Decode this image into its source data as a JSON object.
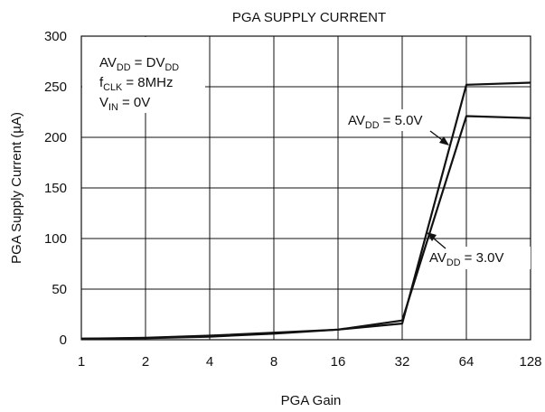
{
  "chart_data": {
    "type": "line",
    "title": "PGA SUPPLY CURRENT",
    "xlabel": "PGA Gain",
    "ylabel": "PGA Supply Current (µA)",
    "x_scale": "log2",
    "xlim": [
      1,
      128
    ],
    "ylim": [
      0,
      300
    ],
    "x_ticks": [
      "1",
      "2",
      "4",
      "8",
      "16",
      "32",
      "64",
      "128"
    ],
    "y_ticks": [
      "0",
      "50",
      "100",
      "150",
      "200",
      "250",
      "300"
    ],
    "grid": true,
    "conditions": [
      {
        "main": "AV",
        "sub": "DD",
        "rest": " = DV",
        "sub2": "DD"
      },
      {
        "main": "f",
        "sub": "CLK",
        "rest": " = 8MHz",
        "sub2": ""
      },
      {
        "main": "V",
        "sub": "IN",
        "rest": " = 0V",
        "sub2": ""
      }
    ],
    "series": [
      {
        "label_main": "AV",
        "label_sub": "DD",
        "label_rest": " = 5.0V",
        "x": [
          1,
          2,
          4,
          8,
          16,
          32,
          64,
          128
        ],
        "y": [
          1,
          2,
          4,
          7,
          10,
          16,
          252,
          254
        ]
      },
      {
        "label_main": "AV",
        "label_sub": "DD",
        "label_rest": " = 3.0V",
        "x": [
          1,
          2,
          4,
          8,
          16,
          32,
          64,
          128
        ],
        "y": [
          1,
          1.5,
          3,
          6,
          10,
          19,
          221,
          219
        ]
      }
    ]
  }
}
